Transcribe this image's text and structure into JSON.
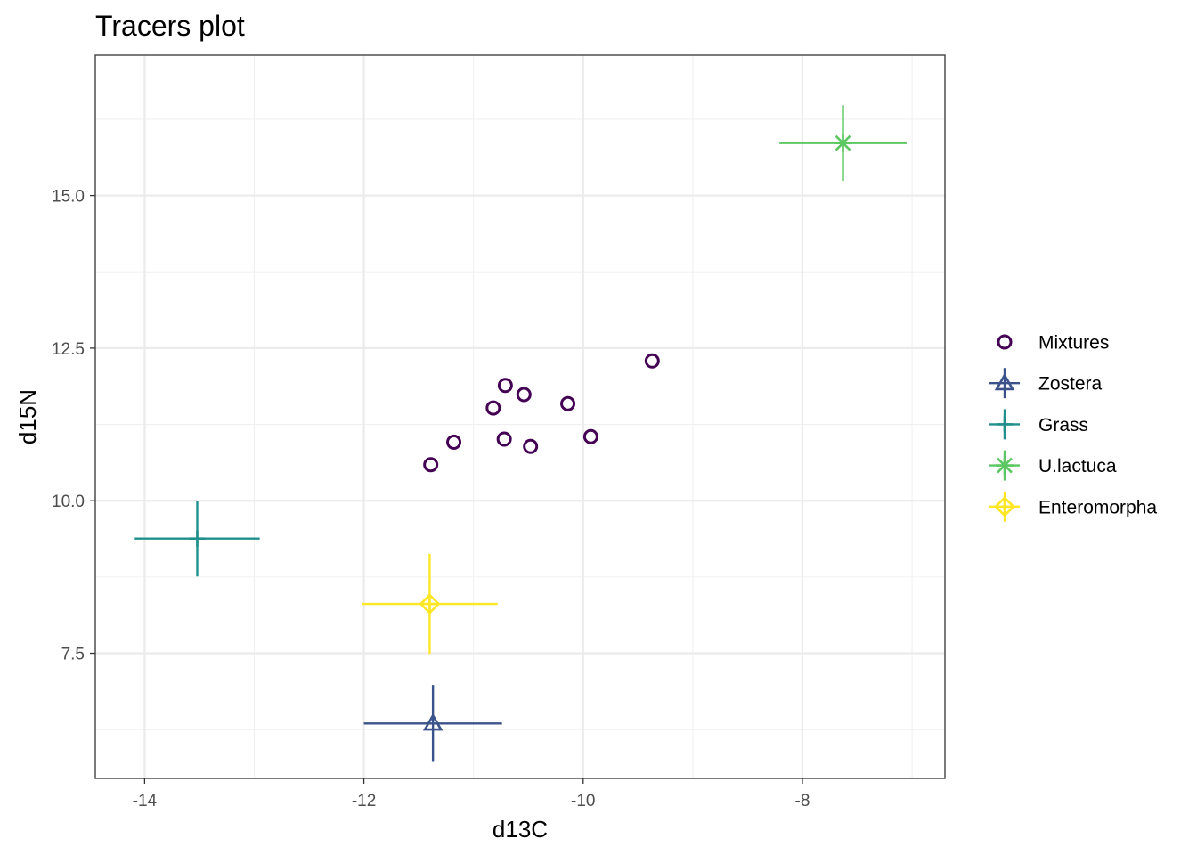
{
  "chart_data": {
    "type": "scatter",
    "title": "Tracers plot",
    "xlabel": "d13C",
    "ylabel": "d15N",
    "xlim": [
      -14.45,
      -6.7
    ],
    "ylim": [
      5.45,
      17.3
    ],
    "x_ticks": [
      -14,
      -12,
      -10,
      -8
    ],
    "x_tick_labels": [
      "-14",
      "-12",
      "-10",
      "-8"
    ],
    "y_ticks": [
      7.5,
      10.0,
      12.5,
      15.0
    ],
    "y_tick_labels": [
      "7.5",
      "10.0",
      "12.5",
      "15.0"
    ],
    "grid": true,
    "legend_position": "right",
    "mixtures": {
      "name": "Mixtures",
      "color": "#440154",
      "marker": "open-circle",
      "points": [
        {
          "x": -11.39,
          "y": 10.59
        },
        {
          "x": -11.18,
          "y": 10.96
        },
        {
          "x": -10.82,
          "y": 11.52
        },
        {
          "x": -10.71,
          "y": 11.89
        },
        {
          "x": -10.72,
          "y": 11.01
        },
        {
          "x": -10.54,
          "y": 11.74
        },
        {
          "x": -10.48,
          "y": 10.89
        },
        {
          "x": -10.14,
          "y": 11.59
        },
        {
          "x": -9.93,
          "y": 11.05
        },
        {
          "x": -9.37,
          "y": 12.29
        }
      ]
    },
    "sources": [
      {
        "name": "Zostera",
        "color": "#3B528B",
        "marker": "open-triangle",
        "x": -11.37,
        "y": 6.35,
        "x_err": 0.63,
        "y_err": 0.63
      },
      {
        "name": "Grass",
        "color": "#21908C",
        "marker": "plus",
        "x": -13.52,
        "y": 9.38,
        "x_err": 0.57,
        "y_err": 0.62
      },
      {
        "name": "U.lactuca",
        "color": "#5DC863",
        "marker": "asterisk",
        "x": -7.63,
        "y": 15.86,
        "x_err": 0.58,
        "y_err": 0.62
      },
      {
        "name": "Enteromorpha",
        "color": "#FDE725",
        "marker": "open-diamond",
        "x": -11.4,
        "y": 8.31,
        "x_err": 0.62,
        "y_err": 0.82
      }
    ]
  }
}
